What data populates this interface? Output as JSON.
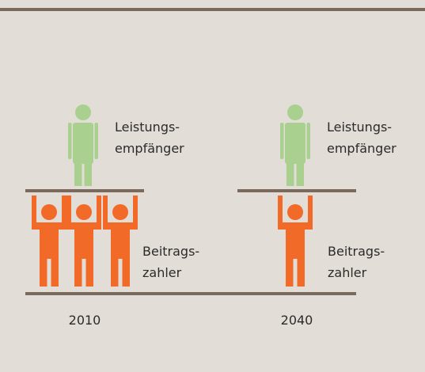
{
  "panels": [
    {
      "year": "2010",
      "recipients": [
        "Leistungs-",
        "empfänger"
      ],
      "contributors": [
        "Beitrags-",
        "zahler"
      ]
    },
    {
      "year": "2040",
      "recipients": [
        "Leistungs-",
        "empfänger"
      ],
      "contributors": [
        "Beitrags-",
        "zahler"
      ]
    }
  ]
}
